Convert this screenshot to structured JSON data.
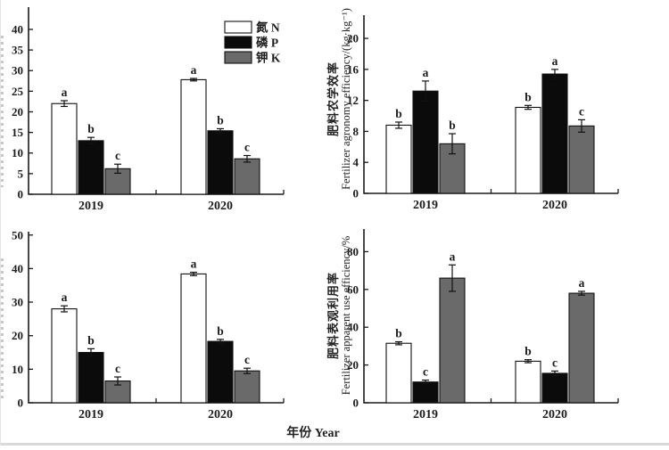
{
  "figure": {
    "xlabel": "年份 Year",
    "axis_color": "#1a1a1a",
    "error_bar_color": "#111111",
    "legend": [
      {
        "label": "氮 N",
        "color": "#ffffff"
      },
      {
        "label": "磷 P",
        "color": "#0b0b0b"
      },
      {
        "label": "钾 K",
        "color": "#6a6a6a"
      }
    ]
  },
  "chart_data": [
    {
      "id": "top-left",
      "type": "bar",
      "categories": [
        "2019",
        "2020"
      ],
      "series": [
        {
          "name": "氮 N",
          "color": "#ffffff",
          "values": [
            22.0,
            27.8
          ],
          "errors": [
            0.7,
            0.3
          ],
          "letters": [
            "a",
            "a"
          ]
        },
        {
          "name": "磷 P",
          "color": "#0b0b0b",
          "values": [
            13.0,
            15.4
          ],
          "errors": [
            0.8,
            0.5
          ],
          "letters": [
            "b",
            "b"
          ]
        },
        {
          "name": "钾 K",
          "color": "#6a6a6a",
          "values": [
            6.2,
            8.6
          ],
          "errors": [
            1.1,
            0.8
          ],
          "letters": [
            "c",
            "c"
          ]
        }
      ],
      "ylabel_zh": "",
      "ylabel_en": "",
      "ylabel_clipped": true,
      "yticks": [
        0,
        5,
        10,
        15,
        20,
        25,
        30,
        35,
        40
      ],
      "ylim": [
        0,
        45.4
      ],
      "legend_visible": true
    },
    {
      "id": "top-right",
      "type": "bar",
      "categories": [
        "2019",
        "2020"
      ],
      "series": [
        {
          "name": "氮 N",
          "color": "#ffffff",
          "values": [
            8.8,
            11.1
          ],
          "errors": [
            0.4,
            0.25
          ],
          "letters": [
            "b",
            "b"
          ]
        },
        {
          "name": "磷 P",
          "color": "#0b0b0b",
          "values": [
            13.2,
            15.4
          ],
          "errors": [
            1.3,
            0.6
          ],
          "letters": [
            "a",
            "a"
          ]
        },
        {
          "name": "钾 K",
          "color": "#6a6a6a",
          "values": [
            6.4,
            8.7
          ],
          "errors": [
            1.3,
            0.8
          ],
          "letters": [
            "b",
            "c"
          ]
        }
      ],
      "ylabel_zh": "肥料农学效率",
      "ylabel_en": "Fertilizer agronomy efficiency/(kg·kg⁻¹)",
      "ylabel_clipped": false,
      "yticks": [
        0,
        4,
        8,
        12,
        16,
        20
      ],
      "ylim": [
        0,
        23
      ],
      "legend_visible": false
    },
    {
      "id": "bottom-left",
      "type": "bar",
      "categories": [
        "2019",
        "2020"
      ],
      "series": [
        {
          "name": "氮 N",
          "color": "#ffffff",
          "values": [
            28.0,
            38.4
          ],
          "errors": [
            0.9,
            0.5
          ],
          "letters": [
            "a",
            "a"
          ]
        },
        {
          "name": "磷 P",
          "color": "#0b0b0b",
          "values": [
            15.0,
            18.3
          ],
          "errors": [
            1.1,
            0.6
          ],
          "letters": [
            "b",
            "b"
          ]
        },
        {
          "name": "钾 K",
          "color": "#6a6a6a",
          "values": [
            6.5,
            9.5
          ],
          "errors": [
            1.2,
            0.8
          ],
          "letters": [
            "c",
            "c"
          ]
        }
      ],
      "ylabel_zh": "",
      "ylabel_en": "",
      "ylabel_clipped": true,
      "yticks": [
        0,
        10,
        20,
        30,
        40,
        50
      ],
      "ylim": [
        0,
        51
      ],
      "legend_visible": false
    },
    {
      "id": "bottom-right",
      "type": "bar",
      "categories": [
        "2019",
        "2020"
      ],
      "series": [
        {
          "name": "氮 N",
          "color": "#ffffff",
          "values": [
            31.5,
            22.0
          ],
          "errors": [
            0.8,
            0.8
          ],
          "letters": [
            "b",
            "b"
          ]
        },
        {
          "name": "磷 P",
          "color": "#0b0b0b",
          "values": [
            11.0,
            15.6
          ],
          "errors": [
            1.0,
            1.2
          ],
          "letters": [
            "c",
            "c"
          ]
        },
        {
          "name": "钾 K",
          "color": "#6a6a6a",
          "values": [
            66.0,
            58.0
          ],
          "errors": [
            7.0,
            1.0
          ],
          "letters": [
            "a",
            "a"
          ]
        }
      ],
      "ylabel_zh": "肥料表观利用率",
      "ylabel_en": "Fertilizer apparent use efficiency/%",
      "ylabel_clipped": false,
      "yticks": [
        0,
        20,
        40,
        60,
        80
      ],
      "ylim": [
        0,
        92
      ],
      "legend_visible": false
    }
  ]
}
